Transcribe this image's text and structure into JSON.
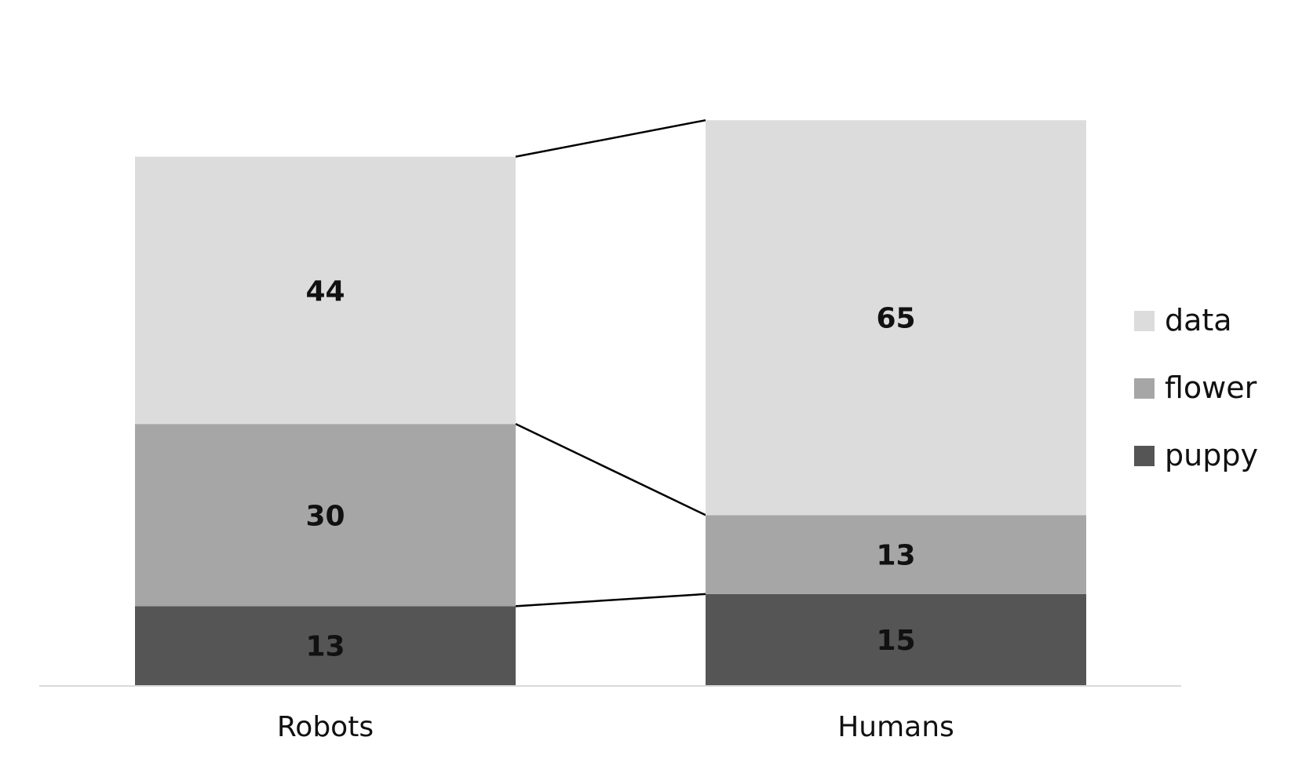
{
  "chart_data": {
    "type": "bar",
    "stacked": true,
    "categories": [
      "Robots",
      "Humans"
    ],
    "series": [
      {
        "name": "puppy",
        "values": [
          13,
          15
        ],
        "color": "#555555"
      },
      {
        "name": "flower",
        "values": [
          30,
          13
        ],
        "color": "#a6a6a6"
      },
      {
        "name": "data",
        "values": [
          44,
          65
        ],
        "color": "#dcdcdc"
      }
    ],
    "title": "",
    "xlabel": "",
    "ylabel": "",
    "ylim": [
      0,
      93
    ],
    "grid": false,
    "series_lines": true,
    "legend": {
      "position": "right",
      "order": [
        "data",
        "flower",
        "puppy"
      ]
    },
    "axis_color": "#d9d9d9",
    "connector_color": "#000000"
  }
}
